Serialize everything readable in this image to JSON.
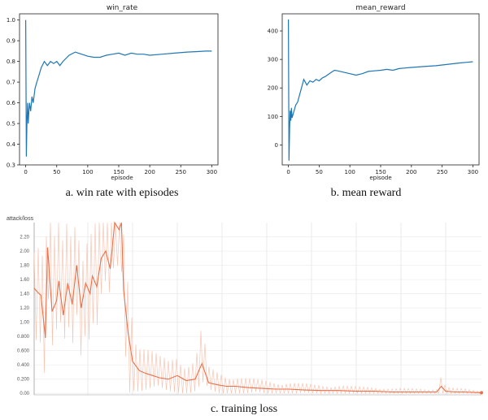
{
  "chart_data": [
    {
      "type": "line",
      "title": "win_rate",
      "xlabel": "episode",
      "ylabel": "",
      "caption": "a. win rate with episodes",
      "xlim": [
        -10,
        310
      ],
      "ylim": [
        0.3,
        1.03
      ],
      "xticks": [
        0,
        50,
        100,
        150,
        200,
        250,
        300
      ],
      "yticks": [
        0.3,
        0.4,
        0.5,
        0.6,
        0.7,
        0.8,
        0.9,
        1.0
      ],
      "ytick_labels": [
        "0.3",
        "0.4",
        "0.5",
        "0.6",
        "0.7",
        "0.8",
        "0.9",
        "1.0"
      ],
      "color": "#1f77b4",
      "series": [
        {
          "x": [
            0,
            1,
            2,
            3,
            4,
            5,
            6,
            8,
            10,
            12,
            15,
            18,
            20,
            25,
            30,
            35,
            40,
            45,
            50,
            55,
            60,
            70,
            80,
            85,
            90,
            100,
            110,
            120,
            130,
            140,
            150,
            160,
            170,
            180,
            190,
            200,
            220,
            240,
            260,
            280,
            290,
            300
          ],
          "y": [
            1.0,
            0.34,
            0.5,
            0.6,
            0.5,
            0.55,
            0.6,
            0.56,
            0.63,
            0.6,
            0.67,
            0.7,
            0.72,
            0.77,
            0.8,
            0.78,
            0.8,
            0.79,
            0.8,
            0.78,
            0.8,
            0.83,
            0.845,
            0.84,
            0.835,
            0.825,
            0.82,
            0.82,
            0.83,
            0.835,
            0.84,
            0.83,
            0.84,
            0.835,
            0.835,
            0.83,
            0.835,
            0.84,
            0.845,
            0.848,
            0.85,
            0.85
          ]
        }
      ]
    },
    {
      "type": "line",
      "title": "mean_reward",
      "xlabel": "episode",
      "ylabel": "",
      "caption": "b. mean reward",
      "xlim": [
        -10,
        310
      ],
      "ylim": [
        -70,
        460
      ],
      "xticks": [
        0,
        50,
        100,
        150,
        200,
        250,
        300
      ],
      "yticks": [
        0,
        100,
        200,
        300,
        400
      ],
      "ytick_labels": [
        "0",
        "100",
        "200",
        "300",
        "400"
      ],
      "color": "#1f77b4",
      "series": [
        {
          "x": [
            0,
            1,
            2,
            3,
            4,
            5,
            6,
            8,
            10,
            12,
            15,
            20,
            25,
            30,
            35,
            40,
            45,
            50,
            55,
            60,
            70,
            75,
            80,
            90,
            100,
            110,
            120,
            130,
            140,
            150,
            160,
            170,
            180,
            190,
            200,
            220,
            240,
            260,
            280,
            290,
            300
          ],
          "y": [
            440,
            -55,
            60,
            120,
            85,
            130,
            95,
            110,
            125,
            140,
            150,
            190,
            230,
            210,
            225,
            220,
            230,
            225,
            235,
            240,
            255,
            262,
            260,
            255,
            250,
            245,
            250,
            258,
            260,
            262,
            265,
            262,
            268,
            270,
            272,
            275,
            278,
            283,
            288,
            290,
            292
          ]
        }
      ]
    },
    {
      "type": "line",
      "title": "attack/loss",
      "caption": "c. training loss",
      "xlim": [
        0,
        100
      ],
      "ylim": [
        -0.02,
        2.4
      ],
      "yticks": [
        0.0,
        0.2,
        0.4,
        0.6,
        0.8,
        1.0,
        1.2,
        1.4,
        1.6,
        1.8,
        2.0,
        2.2
      ],
      "ytick_labels": [
        "0.00",
        "0.200",
        "0.400",
        "0.600",
        "0.800",
        "1.00",
        "1.20",
        "1.40",
        "1.60",
        "1.80",
        "2.00",
        "2.20"
      ],
      "xlabels_visible": false,
      "color": "#e8704a",
      "raw_color": "#f7c6b3",
      "series": [
        {
          "x": [
            0,
            0.8,
            1.5,
            2.5,
            3.0,
            4.0,
            5.0,
            5.5,
            6.5,
            7.5,
            8.5,
            9.5,
            10.5,
            11.5,
            12.5,
            13.0,
            14.0,
            15.0,
            16.0,
            17.0,
            18.0,
            19.0,
            19.5,
            20.0,
            21.0,
            22.0,
            23.5,
            25.0,
            26.5,
            28.0,
            30.0,
            32.0,
            34.0,
            36.0,
            37.5,
            39.0,
            41.0,
            43.0,
            45.0,
            48.0,
            51.0,
            54.0,
            57.0,
            60.0,
            64.0,
            68.0,
            72.0,
            76.0,
            80.0,
            84.0,
            88.0,
            90.0,
            91.0,
            92.0,
            94.0,
            96.0,
            98.0,
            100.0
          ],
          "y": [
            1.48,
            1.42,
            1.38,
            0.78,
            2.05,
            1.15,
            1.3,
            1.58,
            1.1,
            1.55,
            1.25,
            1.8,
            1.2,
            1.55,
            1.4,
            1.65,
            1.5,
            1.9,
            2.0,
            1.75,
            2.4,
            2.3,
            2.4,
            1.45,
            0.85,
            0.45,
            0.32,
            0.28,
            0.25,
            0.22,
            0.2,
            0.25,
            0.18,
            0.2,
            0.42,
            0.15,
            0.12,
            0.1,
            0.1,
            0.08,
            0.07,
            0.06,
            0.06,
            0.05,
            0.04,
            0.04,
            0.03,
            0.03,
            0.02,
            0.02,
            0.02,
            0.02,
            0.1,
            0.03,
            0.02,
            0.02,
            0.015,
            0.01
          ]
        }
      ]
    }
  ]
}
